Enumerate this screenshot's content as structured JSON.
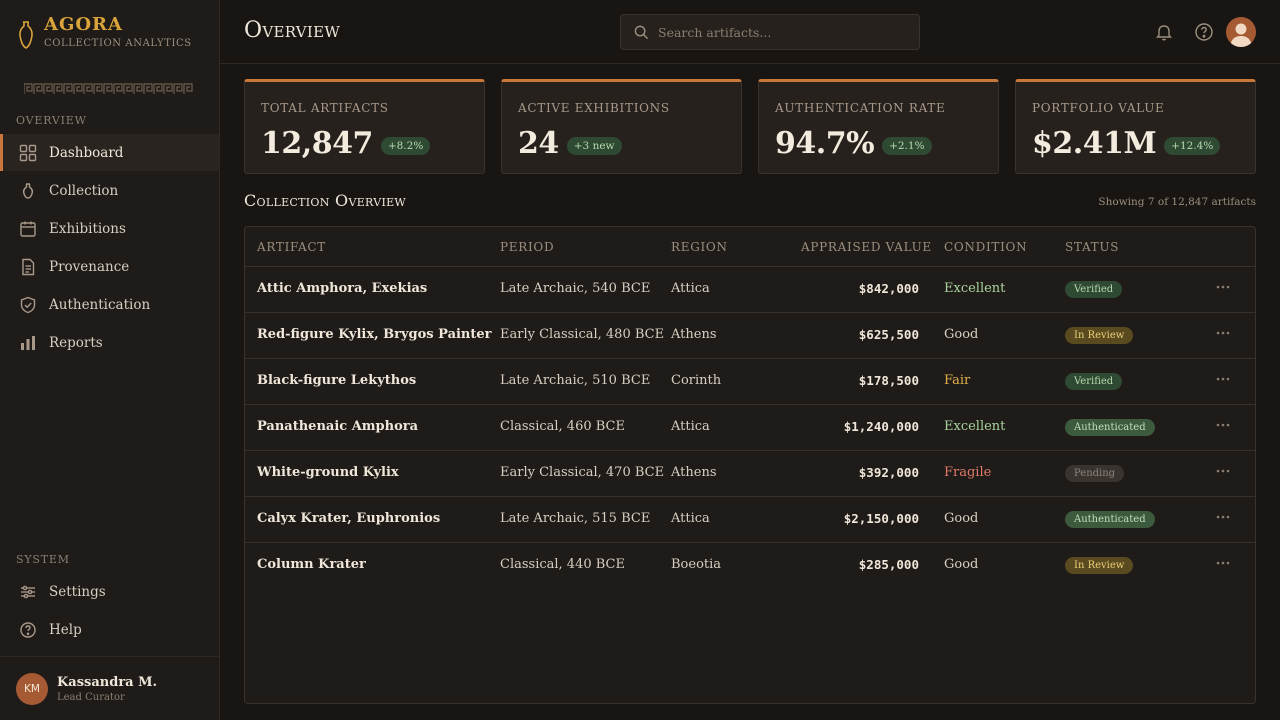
{
  "app": {
    "name": "AGORA",
    "subtitle": "Collection Analytics"
  },
  "sidebar": {
    "section_overview": "Overview",
    "items": [
      {
        "label": "Dashboard",
        "icon": "grid-icon",
        "active": true
      },
      {
        "label": "Collection",
        "icon": "amphora-icon"
      },
      {
        "label": "Exhibitions",
        "icon": "calendar-icon"
      },
      {
        "label": "Provenance",
        "icon": "document-icon"
      },
      {
        "label": "Authentication",
        "icon": "shield-check-icon"
      },
      {
        "label": "Reports",
        "icon": "bar-chart-icon"
      }
    ],
    "section_system": "System",
    "system_items": [
      {
        "label": "Settings",
        "icon": "sliders-icon"
      },
      {
        "label": "Help",
        "icon": "help-circle-icon"
      }
    ],
    "user": {
      "initials": "KM",
      "name": "Kassandra M.",
      "role": "Lead Curator"
    }
  },
  "header": {
    "title": "Overview",
    "search_placeholder": "Search artifacts..."
  },
  "kpis": [
    {
      "label": "Total Artifacts",
      "value": "12,847",
      "delta": "+8.2%"
    },
    {
      "label": "Active Exhibitions",
      "value": "24",
      "delta": "+3 new"
    },
    {
      "label": "Authentication Rate",
      "value": "94.7%",
      "delta": "+2.1%"
    },
    {
      "label": "Portfolio Value",
      "value": "$2.41M",
      "delta": "+12.4%"
    }
  ],
  "table": {
    "title": "Collection Overview",
    "note": "Showing 7 of 12,847 artifacts",
    "columns": [
      "Artifact",
      "Period",
      "Region",
      "Appraised Value",
      "Condition",
      "Status"
    ],
    "rows": [
      {
        "artifact": "Attic Amphora, Exekias",
        "period": "Late Archaic, 540 BCE",
        "region": "Attica",
        "value": "$842,000",
        "condition": "Excellent",
        "status": "Verified"
      },
      {
        "artifact": "Red-figure Kylix, Brygos Painter",
        "period": "Early Classical, 480 BCE",
        "region": "Athens",
        "value": "$625,500",
        "condition": "Good",
        "status": "In Review"
      },
      {
        "artifact": "Black-figure Lekythos",
        "period": "Late Archaic, 510 BCE",
        "region": "Corinth",
        "value": "$178,500",
        "condition": "Fair",
        "status": "Verified"
      },
      {
        "artifact": "Panathenaic Amphora",
        "period": "Classical, 460 BCE",
        "region": "Attica",
        "value": "$1,240,000",
        "condition": "Excellent",
        "status": "Authenticated"
      },
      {
        "artifact": "White-ground Kylix",
        "period": "Early Classical, 470 BCE",
        "region": "Athens",
        "value": "$392,000",
        "condition": "Fragile",
        "status": "Pending"
      },
      {
        "artifact": "Calyx Krater, Euphronios",
        "period": "Late Archaic, 515 BCE",
        "region": "Attica",
        "value": "$2,150,000",
        "condition": "Good",
        "status": "Authenticated"
      },
      {
        "artifact": "Column Krater",
        "period": "Classical, 440 BCE",
        "region": "Boeotia",
        "value": "$285,000",
        "condition": "Good",
        "status": "In Review"
      }
    ]
  },
  "colors": {
    "accent": "#c9773a",
    "brand": "#d9a43a",
    "background": "#181512",
    "success": "#2f4a32"
  }
}
